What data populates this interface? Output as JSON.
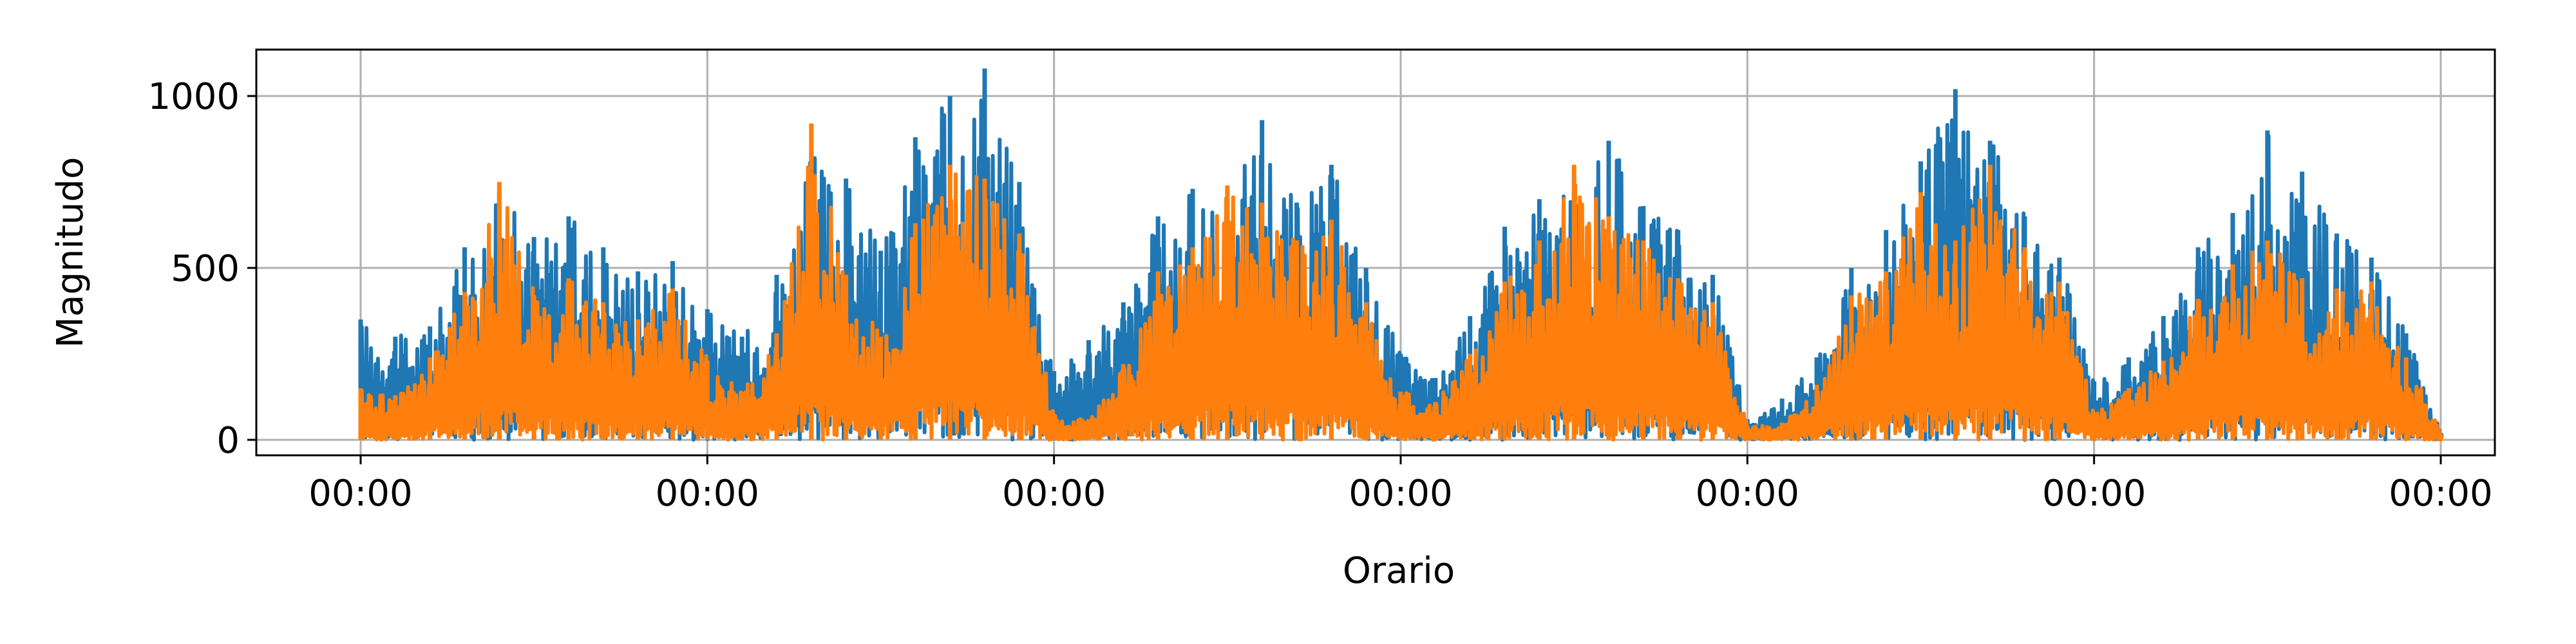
{
  "chart_data": {
    "type": "line",
    "title": "",
    "xlabel": "Orario",
    "ylabel": "Magnitudo",
    "ylim": [
      -45,
      1135
    ],
    "y_ticks": [
      0,
      500,
      1000
    ],
    "x_tick_labels": [
      "00:00",
      "00:00",
      "00:00",
      "00:00",
      "00:00",
      "00:00",
      "00:00"
    ],
    "grid": true,
    "legend": "none",
    "colors": {
      "series_1": "#1f77b4",
      "series_2": "#ff7f0e",
      "grid": "#b0b0b0",
      "axes": "#000000"
    },
    "x_note": "x values are sample times across 6 consecutive days (0 = first 00:00 tick, 6 = last 00:00 tick)",
    "series": [
      {
        "color": "#1f77b4",
        "x": [
          0.0,
          0.1,
          0.2,
          0.3,
          0.4,
          0.5,
          0.6,
          0.7,
          0.8,
          0.9,
          1.0,
          1.1,
          1.2,
          1.3,
          1.4,
          1.5,
          1.6,
          1.7,
          1.8,
          1.9,
          2.0,
          2.1,
          2.2,
          2.3,
          2.4,
          2.5,
          2.6,
          2.7,
          2.8,
          2.9,
          3.0,
          3.1,
          3.2,
          3.3,
          3.4,
          3.5,
          3.6,
          3.7,
          3.8,
          3.9,
          4.0,
          4.1,
          4.2,
          4.3,
          4.4,
          4.5,
          4.6,
          4.7,
          4.8,
          4.9,
          5.0,
          5.1,
          5.2,
          5.3,
          5.4,
          5.5,
          5.6,
          5.7,
          5.8,
          5.9,
          6.0
        ],
        "y": [
          350,
          300,
          330,
          560,
          720,
          590,
          650,
          560,
          490,
          520,
          380,
          300,
          480,
          840,
          760,
          550,
          880,
          1000,
          1080,
          750,
          200,
          290,
          400,
          650,
          730,
          700,
          930,
          690,
          800,
          500,
          250,
          180,
          360,
          620,
          700,
          720,
          870,
          680,
          610,
          480,
          60,
          120,
          240,
          500,
          610,
          810,
          1020,
          870,
          650,
          530,
          170,
          240,
          360,
          560,
          660,
          900,
          780,
          600,
          530,
          310,
          20
        ]
      },
      {
        "color": "#ff7f0e",
        "x": [
          0.0,
          0.1,
          0.2,
          0.3,
          0.4,
          0.5,
          0.6,
          0.7,
          0.8,
          0.9,
          1.0,
          1.1,
          1.2,
          1.3,
          1.4,
          1.5,
          1.6,
          1.7,
          1.8,
          1.9,
          2.0,
          2.1,
          2.2,
          2.3,
          2.4,
          2.5,
          2.6,
          2.7,
          2.8,
          2.9,
          3.0,
          3.1,
          3.2,
          3.3,
          3.4,
          3.5,
          3.6,
          3.7,
          3.8,
          3.9,
          4.0,
          4.1,
          4.2,
          4.3,
          4.4,
          4.5,
          4.6,
          4.7,
          4.8,
          4.9,
          5.0,
          5.1,
          5.2,
          5.3,
          5.4,
          5.5,
          5.6,
          5.7,
          5.8,
          5.9,
          6.0
        ],
        "y": [
          150,
          130,
          240,
          430,
          750,
          420,
          470,
          400,
          350,
          440,
          230,
          140,
          310,
          920,
          480,
          300,
          630,
          800,
          760,
          600,
          70,
          60,
          220,
          490,
          560,
          740,
          690,
          580,
          640,
          400,
          140,
          110,
          250,
          460,
          580,
          800,
          650,
          580,
          470,
          400,
          40,
          50,
          160,
          420,
          490,
          720,
          580,
          800,
          560,
          460,
          80,
          150,
          230,
          410,
          510,
          580,
          470,
          440,
          460,
          240,
          15
        ]
      }
    ]
  }
}
